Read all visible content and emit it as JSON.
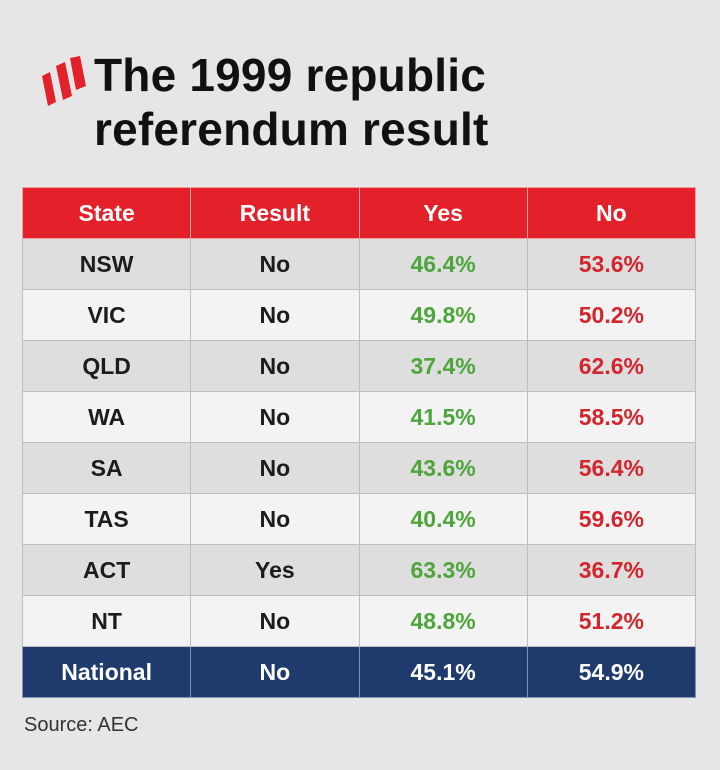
{
  "title": "The 1999 republic\nreferendum result",
  "logo_icon": "sbs-wedge-logo",
  "colors": {
    "header_red": "#e3212b",
    "footer_navy": "#1f3a6d",
    "yes_green": "#4ea53b",
    "no_red": "#d3252d"
  },
  "source": "Source: AEC",
  "chart_data": {
    "type": "table",
    "columns": [
      "State",
      "Result",
      "Yes",
      "No"
    ],
    "rows": [
      [
        "NSW",
        "No",
        "46.4%",
        "53.6%"
      ],
      [
        "VIC",
        "No",
        "49.8%",
        "50.2%"
      ],
      [
        "QLD",
        "No",
        "37.4%",
        "62.6%"
      ],
      [
        "WA",
        "No",
        "41.5%",
        "58.5%"
      ],
      [
        "SA",
        "No",
        "43.6%",
        "56.4%"
      ],
      [
        "TAS",
        "No",
        "40.4%",
        "59.6%"
      ],
      [
        "ACT",
        "Yes",
        "63.3%",
        "36.7%"
      ],
      [
        "NT",
        "No",
        "48.8%",
        "51.2%"
      ]
    ],
    "total": [
      "National",
      "No",
      "45.1%",
      "54.9%"
    ]
  }
}
